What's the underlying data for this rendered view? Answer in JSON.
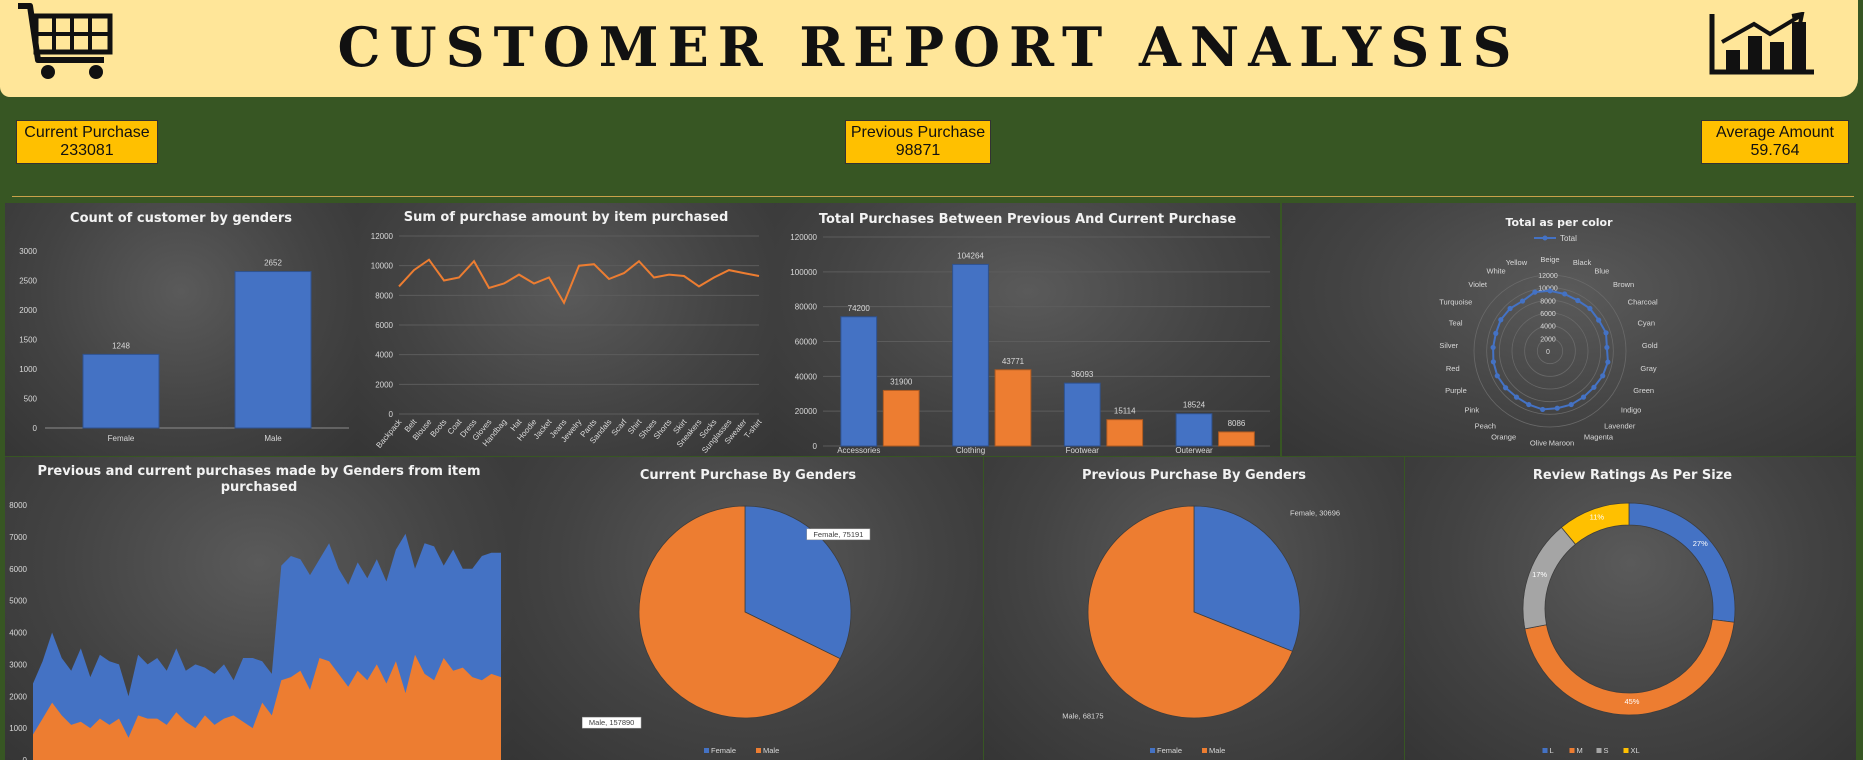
{
  "header": {
    "title": "CUSTOMER REPORT ANALYSIS",
    "left_icon": "shopping-cart-icon",
    "right_icon": "bar-chart-icon"
  },
  "kpis": {
    "current": {
      "label": "Current Purchase",
      "value": "233081"
    },
    "previous": {
      "label": "Previous Purchase",
      "value": "98871"
    },
    "average": {
      "label": "Average Amount",
      "value": "59.764"
    }
  },
  "colors": {
    "background": "#375623",
    "banner": "#ffe699",
    "kpi": "#ffc000",
    "blue": "#4472c4",
    "orange": "#ed7d31",
    "gray": "#a5a5a5",
    "yellow": "#ffc000"
  },
  "chart_data": [
    {
      "id": "gender_count",
      "type": "bar",
      "title": "Count of customer by genders",
      "categories": [
        "Female",
        "Male"
      ],
      "values": [
        1248,
        2652
      ],
      "ylim": [
        0,
        3000
      ],
      "yticks": [
        0,
        500,
        1000,
        1500,
        2000,
        2500,
        3000
      ],
      "data_labels": true,
      "grid": false
    },
    {
      "id": "item_sum",
      "type": "line",
      "title": "Sum of purchase amount by item purchased",
      "categories": [
        "Backpack",
        "Belt",
        "Blouse",
        "Boots",
        "Coat",
        "Dress",
        "Gloves",
        "Handbag",
        "Hat",
        "Hoodie",
        "Jacket",
        "Jeans",
        "Jewelry",
        "Pants",
        "Sandals",
        "Scarf",
        "Shirt",
        "Shoes",
        "Shorts",
        "Skirt",
        "Sneakers",
        "Socks",
        "Sunglasses",
        "Sweater",
        "T-shirt"
      ],
      "values": [
        8600,
        9700,
        10400,
        9000,
        9200,
        10300,
        8500,
        8800,
        9400,
        8800,
        9200,
        7500,
        10000,
        10100,
        9100,
        9500,
        10300,
        9200,
        9400,
        9300,
        8600,
        9200,
        9700,
        9500,
        9300
      ],
      "ylim": [
        0,
        12000
      ],
      "yticks": [
        0,
        2000,
        4000,
        6000,
        8000,
        10000,
        12000
      ],
      "grid": true
    },
    {
      "id": "prev_vs_current",
      "type": "bar",
      "title": "Total Purchases Between Previous And Current Purchase",
      "categories": [
        "Accessories",
        "Clothing",
        "Footwear",
        "Outerwear"
      ],
      "series": [
        {
          "values": [
            74200,
            104264,
            36093,
            18524
          ]
        },
        {
          "values": [
            31900,
            43771,
            15114,
            8086
          ]
        }
      ],
      "ylim": [
        0,
        120000
      ],
      "yticks": [
        0,
        20000,
        40000,
        60000,
        80000,
        100000,
        120000
      ],
      "data_labels": true,
      "grid": true
    },
    {
      "id": "color_radar",
      "type": "radar",
      "title": "Total as per color",
      "legend": [
        "Total"
      ],
      "legend_position": "top",
      "categories": [
        "Beige",
        "Black",
        "Blue",
        "Brown",
        "Charcoal",
        "Cyan",
        "Gold",
        "Gray",
        "Green",
        "Indigo",
        "Lavender",
        "Magenta",
        "Maroon",
        "Olive",
        "Orange",
        "Peach",
        "Pink",
        "Purple",
        "Red",
        "Silver",
        "Teal",
        "Turquoise",
        "Violet",
        "White",
        "Yellow"
      ],
      "values": [
        9500,
        9300,
        9100,
        9200,
        9100,
        9300,
        9000,
        9300,
        9200,
        9000,
        9000,
        9100,
        9100,
        9300,
        9100,
        9000,
        9100,
        9200,
        9100,
        9000,
        9000,
        9200,
        9200,
        9000,
        9600
      ],
      "ylim": [
        0,
        12000
      ],
      "ticks": [
        0,
        2000,
        4000,
        6000,
        8000,
        10000,
        12000
      ]
    },
    {
      "id": "gender_area",
      "type": "area",
      "title": "Previous and current purchases made by Genders from item purchased",
      "series": [
        {
          "values": [
            2400,
            3100,
            4000,
            3200,
            2800,
            3500,
            2600,
            3300,
            3100,
            3000,
            2000,
            3300,
            3000,
            3200,
            2800,
            3500,
            2800,
            3000,
            2900,
            2700,
            3000,
            2500,
            3200,
            3200,
            3100,
            2700,
            6100,
            6400,
            6300,
            5800,
            6300,
            6800,
            6000,
            5500,
            6200,
            5700,
            6300,
            5600,
            6600,
            7100,
            6000,
            6800,
            6700,
            6100,
            6600,
            6000,
            6000,
            6400,
            6500,
            6500
          ]
        },
        {
          "values": [
            800,
            1300,
            1800,
            1400,
            1100,
            1200,
            1000,
            1300,
            1100,
            1300,
            700,
            1400,
            1300,
            1300,
            1100,
            1500,
            1200,
            1000,
            1400,
            1100,
            1300,
            1400,
            1200,
            1000,
            1800,
            1400,
            2500,
            2600,
            2800,
            2200,
            3200,
            3100,
            2700,
            2300,
            2800,
            2500,
            3000,
            2400,
            3100,
            2100,
            3300,
            2700,
            2500,
            3200,
            2800,
            2900,
            2600,
            2500,
            2700,
            2600
          ]
        }
      ],
      "ylim": [
        0,
        8000
      ],
      "yticks": [
        0,
        1000,
        2000,
        3000,
        4000,
        5000,
        6000,
        7000,
        8000
      ],
      "grid": false
    },
    {
      "id": "current_pie",
      "type": "pie",
      "title": "Current Purchase By Genders",
      "slices": [
        {
          "label": "Female",
          "value": 75191
        },
        {
          "label": "Male",
          "value": 157890
        }
      ],
      "slice_labels": [
        "Female, 75191",
        "Male, 157890"
      ],
      "legend": [
        "Female",
        "Male"
      ],
      "legend_position": "bottom"
    },
    {
      "id": "previous_pie",
      "type": "pie",
      "title": "Previous Purchase By Genders",
      "slices": [
        {
          "label": "Female",
          "value": 30696
        },
        {
          "label": "Male",
          "value": 68175
        }
      ],
      "slice_labels": [
        "Female, 30696",
        "Male, 68175"
      ],
      "legend": [
        "Female",
        "Male"
      ],
      "legend_position": "bottom"
    },
    {
      "id": "size_donut",
      "type": "pie",
      "donut": true,
      "title": "Review Ratings As Per Size",
      "slices": [
        {
          "label": "L",
          "value": 27
        },
        {
          "label": "M",
          "value": 45
        },
        {
          "label": "S",
          "value": 17
        },
        {
          "label": "XL",
          "value": 11
        }
      ],
      "slice_labels": [
        "27%",
        "45%",
        "17%",
        "11%"
      ],
      "legend": [
        "L",
        "M",
        "S",
        "XL"
      ],
      "legend_position": "bottom"
    }
  ]
}
